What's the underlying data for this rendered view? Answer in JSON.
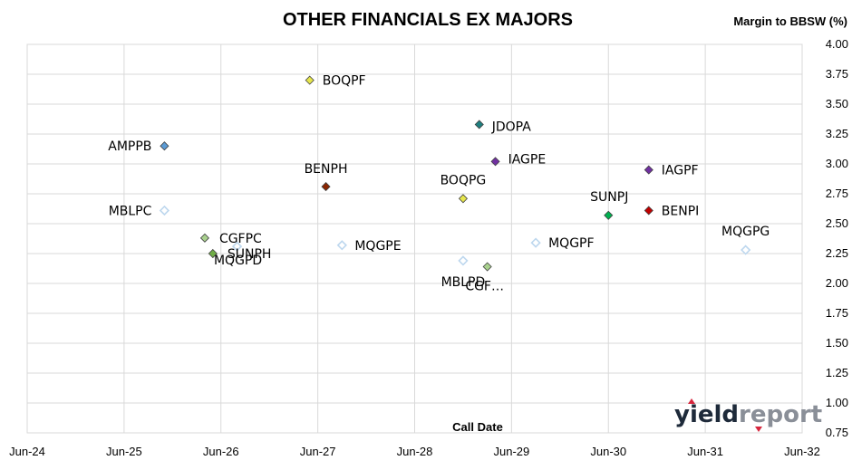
{
  "chart_data": {
    "type": "scatter",
    "title": "OTHER FINANCIALS EX MAJORS",
    "ylabel": "Margin to BBSW (%)",
    "xlabel": "Call Date",
    "x_tick_labels": [
      "Jun-24",
      "Jun-25",
      "Jun-26",
      "Jun-27",
      "Jun-28",
      "Jun-29",
      "Jun-30",
      "Jun-31",
      "Jun-32"
    ],
    "y_tick_labels": [
      "0.75",
      "1.00",
      "1.25",
      "1.50",
      "1.75",
      "2.00",
      "2.25",
      "2.50",
      "2.75",
      "3.00",
      "3.25",
      "3.50",
      "3.75",
      "4.00"
    ],
    "xlim": [
      "Jun-24",
      "Jun-32"
    ],
    "ylim": [
      0.75,
      4.0
    ],
    "y_axis_side": "right",
    "grid": true,
    "points": [
      {
        "label": "AMPPB",
        "x": "Nov-25",
        "y": 3.15,
        "color": "#5b9bd5",
        "hollow": false
      },
      {
        "label": "MBLPC",
        "x": "Nov-25",
        "y": 2.61,
        "color": "#bdd7ee",
        "hollow": true
      },
      {
        "label": "CGFPC",
        "x": "Apr-26",
        "y": 2.38,
        "color": "#a9d18e",
        "hollow": false
      },
      {
        "label": "SUNPH",
        "x": "May-26",
        "y": 2.25,
        "color": "#70ad47",
        "hollow": false
      },
      {
        "label": "MQGPD",
        "x": "Aug-26",
        "y": 2.31,
        "color": "#bdd7ee",
        "hollow": true
      },
      {
        "label": "BOQPF",
        "x": "May-27",
        "y": 3.7,
        "color": "#e6e64c",
        "hollow": false
      },
      {
        "label": "BENPH",
        "x": "Jul-27",
        "y": 2.81,
        "color": "#8b2500",
        "hollow": false
      },
      {
        "label": "MQGPE",
        "x": "Sep-27",
        "y": 2.32,
        "color": "#bdd7ee",
        "hollow": true
      },
      {
        "label": "BOQPG",
        "x": "Dec-28",
        "y": 2.71,
        "color": "#e6e64c",
        "hollow": false
      },
      {
        "label": "MBLPD",
        "x": "Dec-28",
        "y": 2.19,
        "color": "#bdd7ee",
        "hollow": true
      },
      {
        "label": "JDOPA",
        "x": "Feb-29",
        "y": 3.33,
        "color": "#1f7f7f",
        "hollow": false
      },
      {
        "label": "CGF…",
        "x": "Mar-29",
        "y": 2.14,
        "color": "#a9d18e",
        "hollow": false
      },
      {
        "label": "IAGPE",
        "x": "Apr-29",
        "y": 3.02,
        "color": "#7030a0",
        "hollow": false
      },
      {
        "label": "MQGPF",
        "x": "Sep-29",
        "y": 2.34,
        "color": "#bdd7ee",
        "hollow": true
      },
      {
        "label": "SUNPJ",
        "x": "Jun-30",
        "y": 2.57,
        "color": "#00b050",
        "hollow": false
      },
      {
        "label": "BENPI",
        "x": "Nov-30",
        "y": 2.61,
        "color": "#c00000",
        "hollow": false
      },
      {
        "label": "IAGPF",
        "x": "Nov-30",
        "y": 2.95,
        "color": "#7030a0",
        "hollow": false
      },
      {
        "label": "MQGPG",
        "x": "Nov-31",
        "y": 2.28,
        "color": "#bdd7ee",
        "hollow": true
      }
    ]
  },
  "logo": {
    "yield": "yield",
    "report": "report",
    "icon": "yieldreport-logo",
    "accent_color": "#d7263d"
  }
}
